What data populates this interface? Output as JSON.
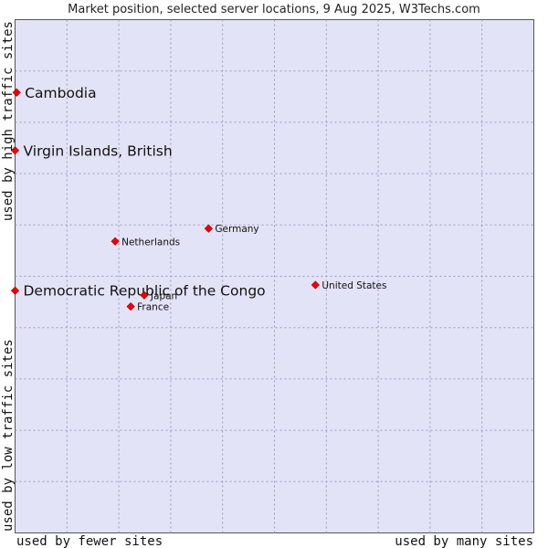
{
  "chart_data": {
    "type": "scatter",
    "title": "Market position, selected server locations, 9 Aug 2025, W3Techs.com",
    "xlabel_left": "used by fewer sites",
    "xlabel_right": "used by many sites",
    "ylabel_bottom": "used by low traffic sites",
    "ylabel_top": "used by high traffic sites",
    "xlim": [
      0,
      100
    ],
    "ylim": [
      0,
      100
    ],
    "grid": true,
    "points": [
      {
        "name": "Cambodia",
        "x": 0.3,
        "y": 85.8,
        "highlight": true
      },
      {
        "name": "Virgin Islands, British",
        "x": 0.0,
        "y": 74.5,
        "highlight": true
      },
      {
        "name": "Democratic Republic of the Congo",
        "x": 0.0,
        "y": 47.2,
        "highlight": true
      },
      {
        "name": "Germany",
        "x": 37.3,
        "y": 59.3,
        "highlight": false
      },
      {
        "name": "Netherlands",
        "x": 19.3,
        "y": 56.8,
        "highlight": false
      },
      {
        "name": "United States",
        "x": 57.9,
        "y": 48.3,
        "highlight": false
      },
      {
        "name": "Japan",
        "x": 24.9,
        "y": 46.3,
        "highlight": false
      },
      {
        "name": "France",
        "x": 22.3,
        "y": 44.1,
        "highlight": false
      }
    ]
  }
}
